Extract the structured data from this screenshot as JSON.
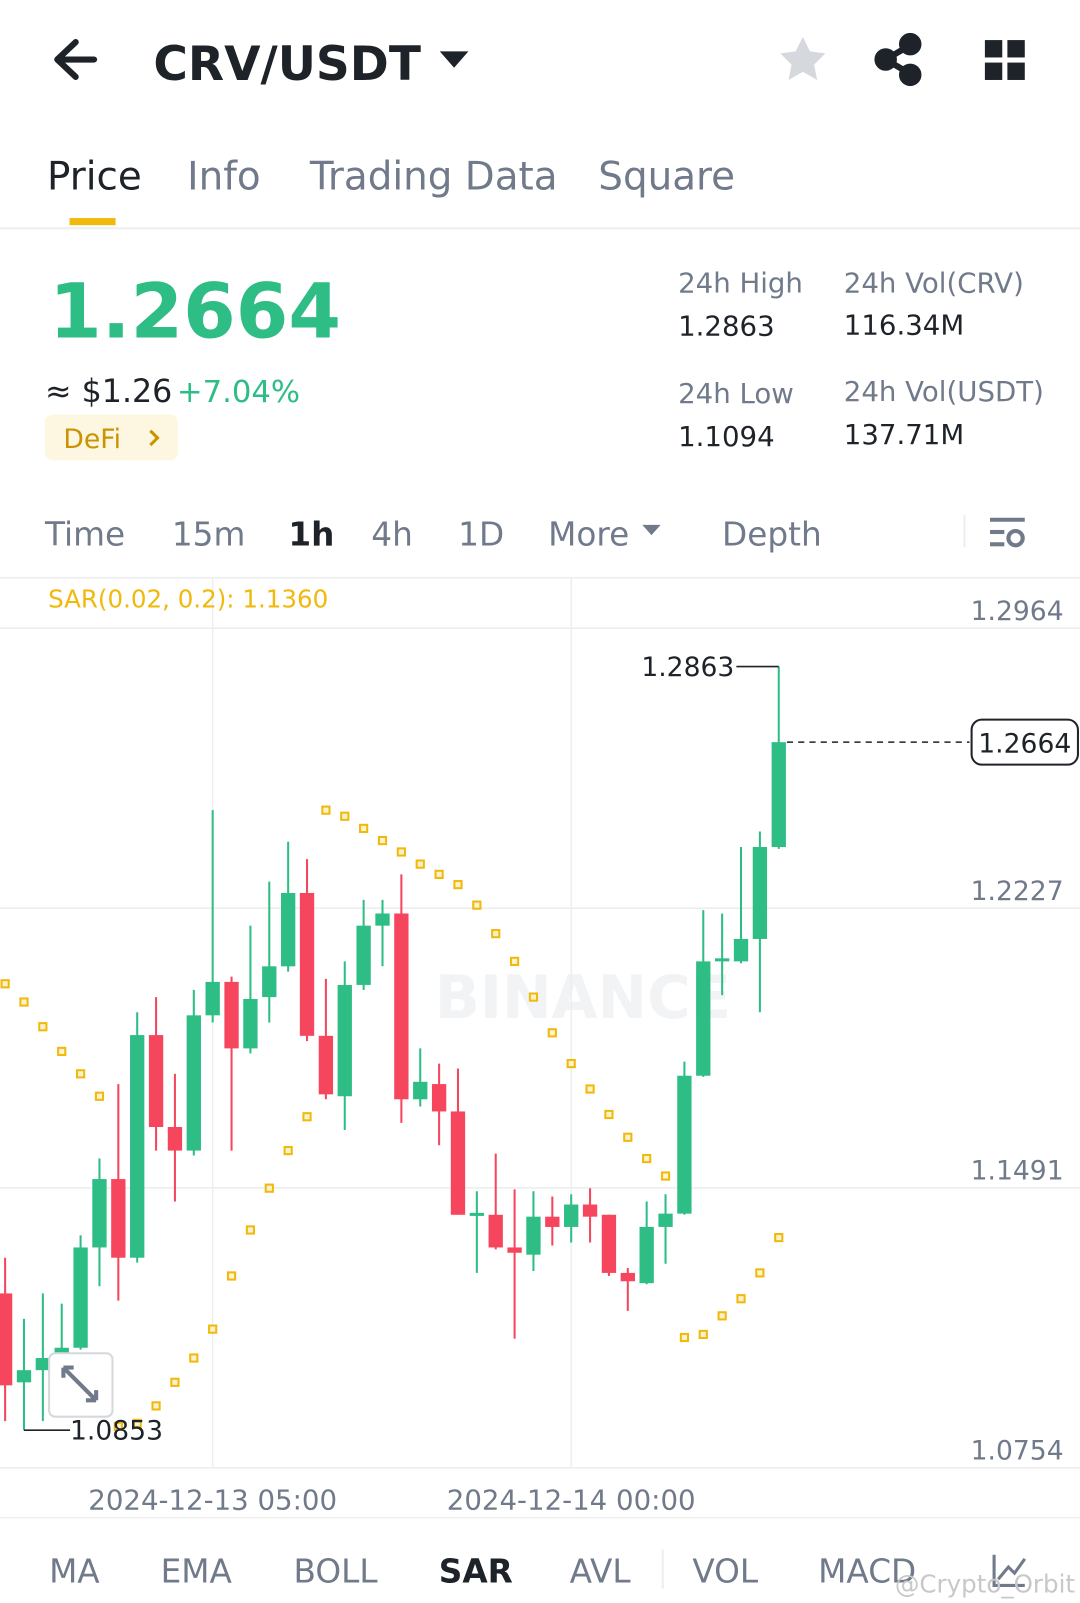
{
  "header": {
    "pair": "CRV/USDT"
  },
  "tabs": [
    "Price",
    "Info",
    "Trading Data",
    "Square"
  ],
  "price": {
    "last": "1.2664",
    "fiat": "≈ $1.26",
    "change": "+7.04%",
    "tag": "DeFi"
  },
  "stats": [
    {
      "label": "24h High",
      "value": "1.2863"
    },
    {
      "label": "24h Vol(CRV)",
      "value": "116.34M"
    },
    {
      "label": "24h Low",
      "value": "1.1094"
    },
    {
      "label": "24h Vol(USDT)",
      "value": "137.71M"
    }
  ],
  "intervals": [
    "Time",
    "15m",
    "1h",
    "4h",
    "1D",
    "More",
    "Depth"
  ],
  "indicators": [
    "MA",
    "EMA",
    "BOLL",
    "SAR",
    "AVL",
    "VOL",
    "MACD"
  ],
  "watermark": "@Crypto_Orbit",
  "chart_data": {
    "type": "candlestick",
    "watermark": "BINANCE",
    "categories": [
      null,
      null,
      null,
      null,
      null,
      null,
      null,
      null,
      null,
      null,
      null,
      "2024-12-13 05:00",
      null,
      null,
      null,
      null,
      null,
      null,
      null,
      null,
      null,
      null,
      null,
      null,
      null,
      null,
      null,
      null,
      null,
      null,
      "2024-12-14 00:00",
      null,
      null,
      null,
      null,
      null,
      null,
      null,
      null,
      null,
      null,
      null
    ],
    "open": [
      1.1213,
      1.0979,
      1.1011,
      1.1051,
      1.107,
      1.1334,
      1.1514,
      1.1307,
      1.1893,
      1.1651,
      1.1589,
      1.1945,
      1.2033,
      1.1858,
      1.1993,
      1.2074,
      1.2267,
      1.1891,
      1.1732,
      1.2025,
      1.2181,
      1.2213,
      1.1724,
      1.1764,
      1.1692,
      1.1417,
      1.142,
      1.1334,
      1.1315,
      1.1415,
      1.1388,
      1.1447,
      1.142,
      1.1267,
      1.124,
      1.1388,
      1.1423,
      1.1786,
      1.2087,
      1.2087,
      1.2146,
      1.2388
    ],
    "high": [
      1.1307,
      1.1146,
      1.1213,
      1.1186,
      1.1366,
      1.1568,
      1.1764,
      1.1953,
      1.1993,
      1.1791,
      1.2012,
      1.2485,
      1.2047,
      1.2181,
      1.2297,
      1.2402,
      1.2356,
      1.2041,
      1.2087,
      1.2249,
      1.2249,
      1.2316,
      1.1858,
      1.1818,
      1.1805,
      1.1482,
      1.1581,
      1.1487,
      1.1482,
      1.1468,
      1.1474,
      1.149,
      1.142,
      1.128,
      1.1455,
      1.1474,
      1.1823,
      1.2222,
      1.2213,
      1.2388,
      1.2429,
      1.2863
    ],
    "low": [
      1.0877,
      1.0853,
      1.0877,
      1.0998,
      1.1065,
      1.1232,
      1.1194,
      1.1294,
      1.1589,
      1.1455,
      1.1576,
      1.1926,
      1.1589,
      1.1845,
      1.1926,
      1.206,
      1.1877,
      1.1724,
      1.1643,
      1.2012,
      1.2074,
      1.1662,
      1.1705,
      1.1603,
      1.142,
      1.1267,
      1.1329,
      1.1094,
      1.1272,
      1.1339,
      1.1347,
      1.1347,
      1.1259,
      1.1167,
      1.1237,
      1.1291,
      1.142,
      1.1783,
      1.1998,
      1.2082,
      1.1953,
      1.2383
    ],
    "close": [
      1.0971,
      1.1011,
      1.1043,
      1.107,
      1.1334,
      1.1514,
      1.1307,
      1.1893,
      1.1651,
      1.1589,
      1.1945,
      1.2033,
      1.1858,
      1.1988,
      1.2074,
      1.2267,
      1.1891,
      1.1737,
      1.2025,
      1.2181,
      1.2213,
      1.1724,
      1.177,
      1.1692,
      1.142,
      1.1425,
      1.1334,
      1.132,
      1.1415,
      1.1388,
      1.1447,
      1.1415,
      1.1267,
      1.1245,
      1.1388,
      1.1423,
      1.1786,
      1.2087,
      1.2095,
      1.2146,
      1.2388,
      1.2664
    ],
    "up_color": "#2ebd85",
    "down_color": "#f6465d",
    "sar": {
      "label": "SAR(0.02, 0.2): 1.1360",
      "color": "#f0b90b",
      "values": [
        1.2028,
        1.198,
        1.1915,
        1.185,
        1.1791,
        1.1732,
        1.0863,
        1.0871,
        1.0917,
        1.0979,
        1.1043,
        1.1119,
        1.1259,
        1.138,
        1.149,
        1.1589,
        1.1678,
        1.2485,
        1.2469,
        1.2437,
        1.2405,
        1.2375,
        1.2343,
        1.2316,
        1.2289,
        1.2235,
        1.216,
        1.2087,
        1.1993,
        1.1899,
        1.1818,
        1.1751,
        1.1684,
        1.1624,
        1.1568,
        1.1522,
        1.1097,
        1.1105,
        1.1154,
        1.1199,
        1.1267,
        1.136
      ]
    },
    "last_price": 1.2664,
    "high_marker": 1.2863,
    "low_marker": 1.0853,
    "ylim": [
      1.0754,
      1.3096
    ],
    "yticks": [
      1.2964,
      1.2227,
      1.1491,
      1.0754
    ],
    "grid": true
  }
}
